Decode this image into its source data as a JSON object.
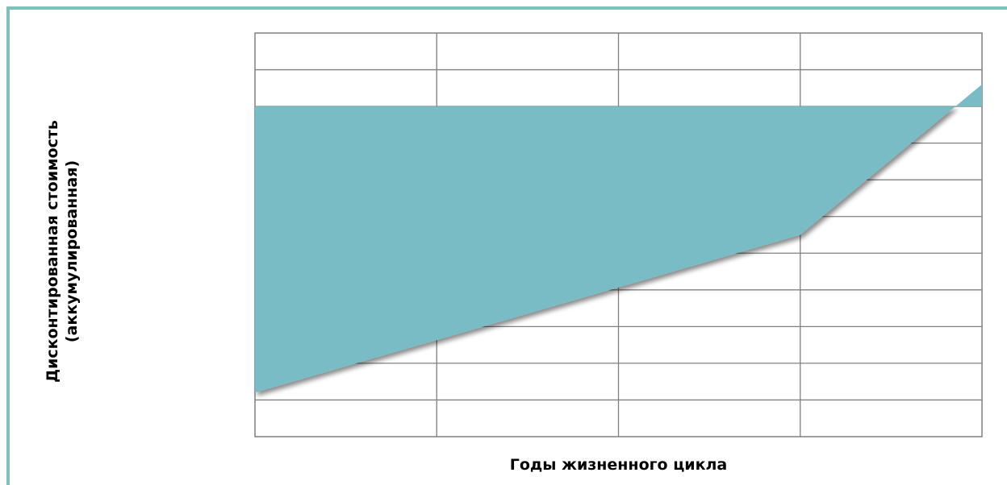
{
  "chart_data": {
    "type": "area",
    "xlabel": "Годы жизненного цикла",
    "ylabel": [
      "Дисконтированная стоимость",
      "(аккумулированная)"
    ],
    "x_segments": 4,
    "y_segments": 11,
    "grid": true,
    "ticks_labeled": false,
    "fill_color": "#7abcc6",
    "grid_color": "#808080",
    "frame_color": "#7fbfbe",
    "baseline_y": 9,
    "series": [
      {
        "x": [
          0,
          3,
          4
        ],
        "y": [
          1.2,
          5.5,
          9.6
        ]
      }
    ],
    "note_values": "grid-unit estimates; axes carry no numeric labels"
  }
}
